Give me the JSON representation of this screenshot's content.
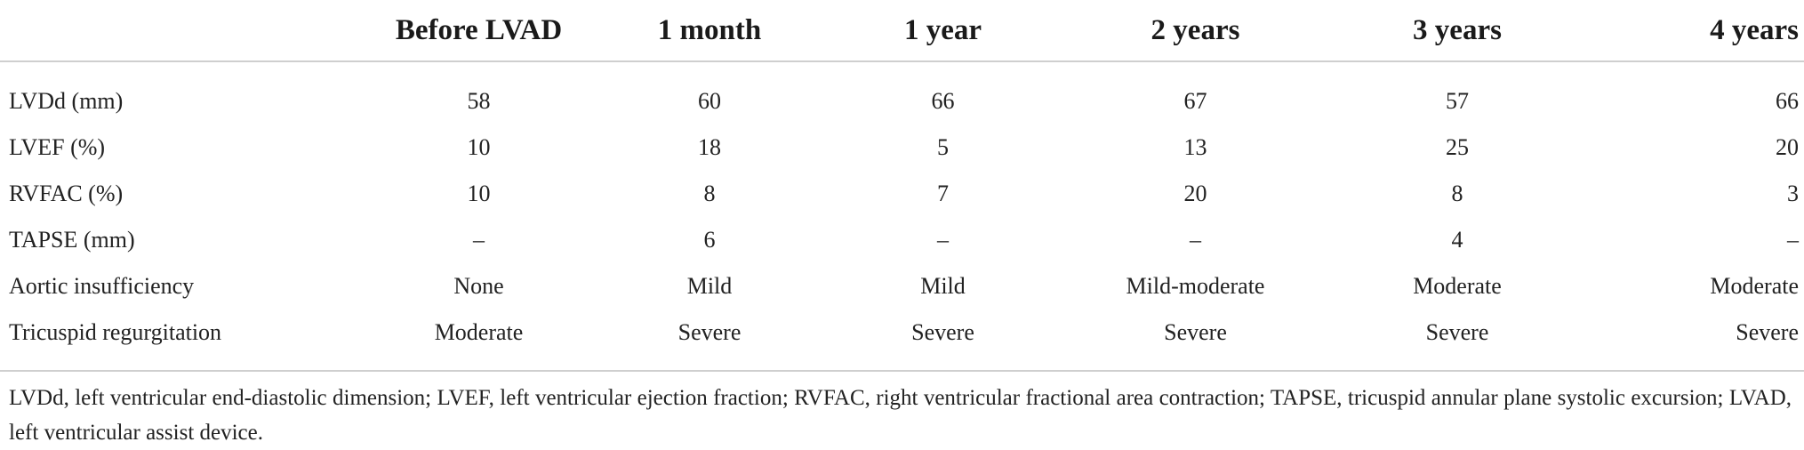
{
  "table": {
    "headers": [
      "",
      "Before LVAD",
      "1 month",
      "1 year",
      "2 years",
      "3 years",
      "4 years"
    ],
    "rows": [
      {
        "label": "LVDd (mm)",
        "cells": [
          "58",
          "60",
          "66",
          "67",
          "57",
          "66"
        ]
      },
      {
        "label": "LVEF (%)",
        "cells": [
          "10",
          "18",
          "5",
          "13",
          "25",
          "20"
        ]
      },
      {
        "label": "RVFAC (%)",
        "cells": [
          "10",
          "8",
          "7",
          "20",
          "8",
          "3"
        ]
      },
      {
        "label": "TAPSE (mm)",
        "cells": [
          "–",
          "6",
          "–",
          "–",
          "4",
          "–"
        ]
      },
      {
        "label": "Aortic insufficiency",
        "cells": [
          "None",
          "Mild",
          "Mild",
          "Mild-moderate",
          "Moderate",
          "Moderate"
        ]
      },
      {
        "label": "Tricuspid regurgitation",
        "cells": [
          "Moderate",
          "Severe",
          "Severe",
          "Severe",
          "Severe",
          "Severe"
        ]
      }
    ]
  },
  "footnote": "LVDd, left ventricular end-diastolic dimension; LVEF, left ventricular ejection fraction; RVFAC, right ventricular fractional area contraction; TAPSE, tricuspid annular plane systolic excursion; LVAD, left ventricular assist device."
}
